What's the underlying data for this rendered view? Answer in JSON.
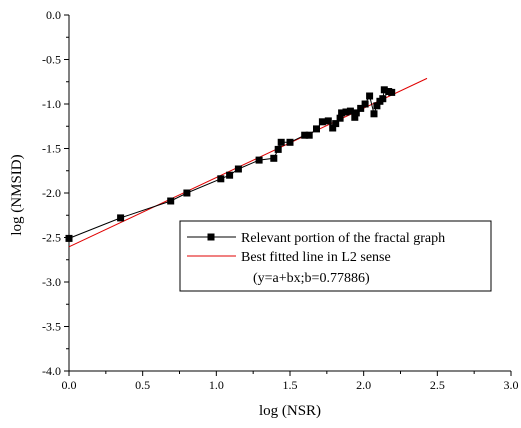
{
  "chart_data": {
    "type": "scatter",
    "title": "",
    "xlabel": "log (NSR)",
    "ylabel": "log (NMSID)",
    "xlim": [
      0.0,
      3.0
    ],
    "ylim": [
      -4.0,
      0.0
    ],
    "x_ticks": [
      "0.0",
      "0.5",
      "1.0",
      "1.5",
      "2.0",
      "2.5",
      "3.0"
    ],
    "y_ticks": [
      "0.0",
      "-0.5",
      "-1.0",
      "-1.5",
      "-2.0",
      "-2.5",
      "-3.0",
      "-3.5",
      "-4.0"
    ],
    "grid": false,
    "legend_position": "lower-right",
    "series": [
      {
        "name": "Relevant portion of the fractal graph",
        "kind": "line+markers",
        "color": "#000000",
        "marker": "square",
        "points": [
          [
            0.0,
            -2.51
          ],
          [
            0.35,
            -2.28
          ],
          [
            0.69,
            -2.09
          ],
          [
            0.8,
            -2.0
          ],
          [
            1.03,
            -1.84
          ],
          [
            1.09,
            -1.8
          ],
          [
            1.15,
            -1.73
          ],
          [
            1.29,
            -1.63
          ],
          [
            1.39,
            -1.61
          ],
          [
            1.42,
            -1.51
          ],
          [
            1.44,
            -1.43
          ],
          [
            1.5,
            -1.43
          ],
          [
            1.6,
            -1.35
          ],
          [
            1.63,
            -1.35
          ],
          [
            1.68,
            -1.28
          ],
          [
            1.72,
            -1.2
          ],
          [
            1.76,
            -1.19
          ],
          [
            1.79,
            -1.27
          ],
          [
            1.81,
            -1.22
          ],
          [
            1.84,
            -1.16
          ],
          [
            1.85,
            -1.1
          ],
          [
            1.88,
            -1.09
          ],
          [
            1.91,
            -1.08
          ],
          [
            1.94,
            -1.15
          ],
          [
            1.95,
            -1.1
          ],
          [
            1.98,
            -1.05
          ],
          [
            2.01,
            -1.0
          ],
          [
            2.04,
            -0.91
          ],
          [
            2.07,
            -1.11
          ],
          [
            2.09,
            -1.02
          ],
          [
            2.11,
            -0.97
          ],
          [
            2.13,
            -0.94
          ],
          [
            2.14,
            -0.84
          ],
          [
            2.17,
            -0.86
          ],
          [
            2.19,
            -0.87
          ]
        ]
      },
      {
        "name": "Best fitted line in L2 sense",
        "kind": "line",
        "color": "#e00000",
        "points": [
          [
            0.0,
            -2.605
          ],
          [
            2.43,
            -0.712
          ]
        ]
      }
    ],
    "legend": {
      "entries": [
        "Relevant portion of the fractal graph",
        "Best fitted line in L2 sense"
      ],
      "note": "(y=a+bx;b=0.77886)"
    }
  }
}
